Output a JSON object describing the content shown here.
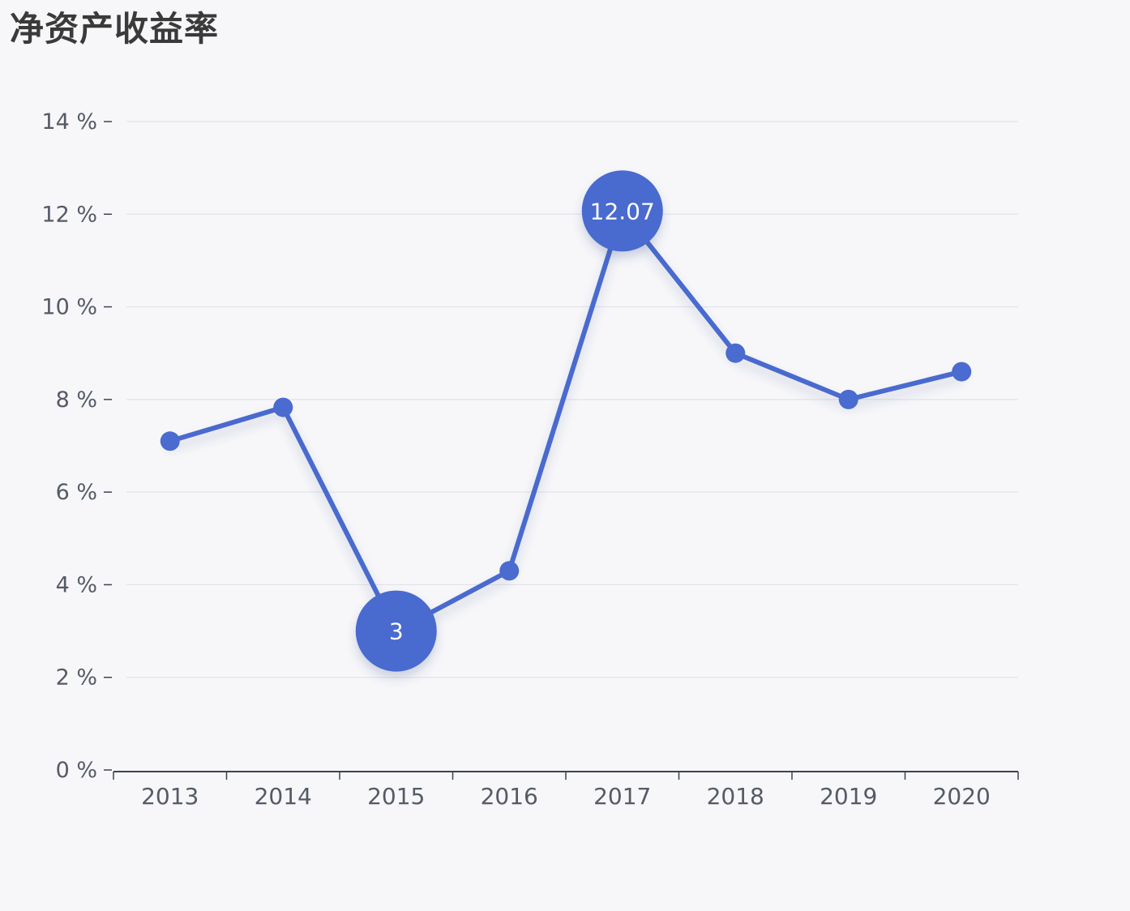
{
  "chart_data": {
    "type": "line",
    "title": "净资产收益率",
    "x": [
      "2013",
      "2014",
      "2015",
      "2016",
      "2017",
      "2018",
      "2019",
      "2020"
    ],
    "series": [
      {
        "values": [
          7.1,
          7.83,
          3.0,
          4.3,
          12.07,
          9.0,
          8.0,
          8.6
        ]
      }
    ],
    "highlighted_points": [
      {
        "x": "2015",
        "label": "3"
      },
      {
        "x": "2017",
        "label": "12.07"
      }
    ],
    "ylim": [
      0,
      14
    ],
    "y_ticks": [
      "0 %",
      "2 %",
      "4 %",
      "6 %",
      "8 %",
      "10 %",
      "12 %",
      "14 %"
    ],
    "grid": true,
    "colors": {
      "line": "#4a6bcf",
      "grid": "#e2e3ea",
      "axis": "#3d4252",
      "background": "#f7f7f9"
    }
  }
}
